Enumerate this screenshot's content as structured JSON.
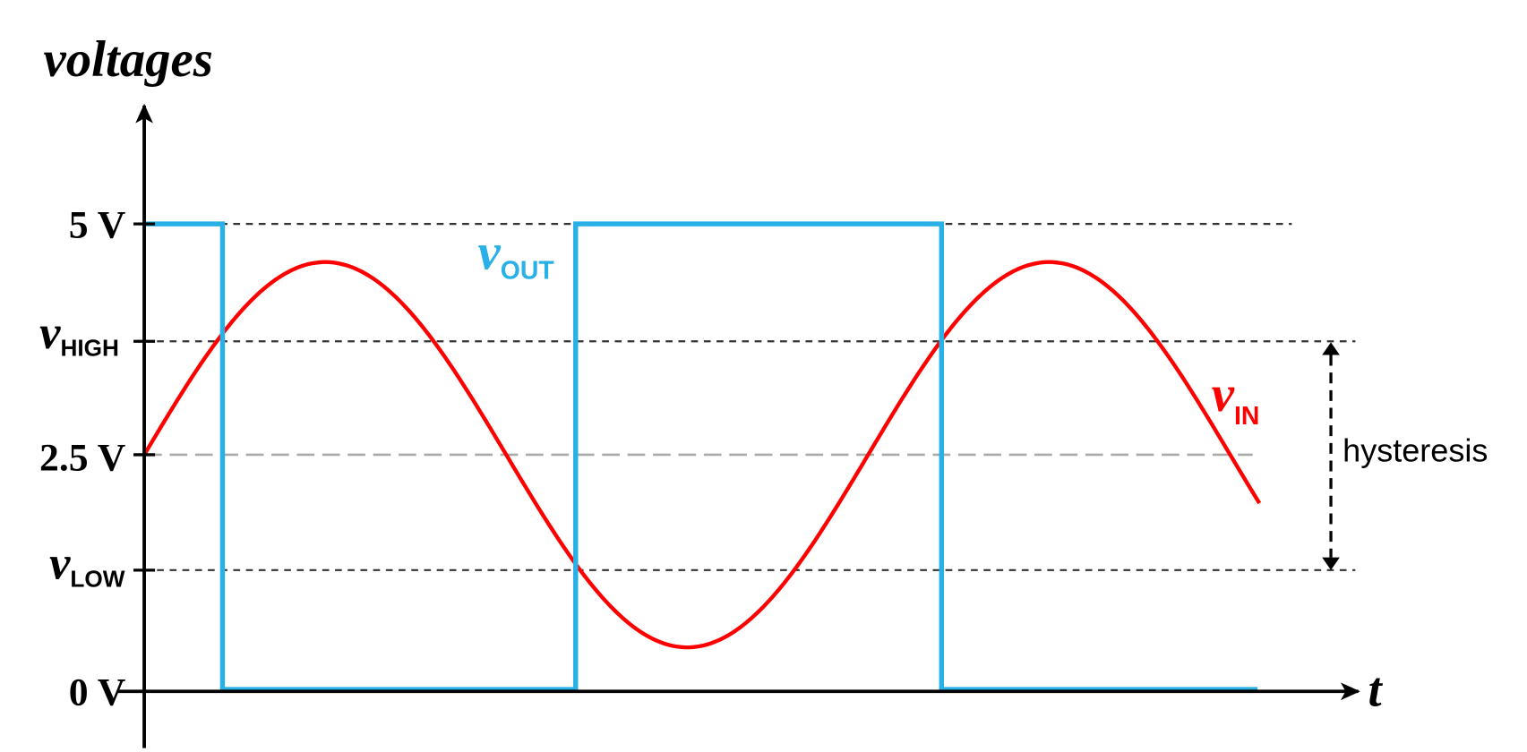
{
  "axis_labels": {
    "y": "voltages",
    "x": "t"
  },
  "levels": [
    {
      "label": "5 V"
    },
    {
      "symbol": "v",
      "subscript": "HIGH"
    },
    {
      "label": "2.5 V"
    },
    {
      "symbol": "v",
      "subscript": "LOW"
    },
    {
      "label": "0 V"
    }
  ],
  "signals": [
    {
      "symbol": "v",
      "subscript": "OUT"
    },
    {
      "symbol": "v",
      "subscript": "IN"
    }
  ],
  "annotation": "hysteresis"
}
